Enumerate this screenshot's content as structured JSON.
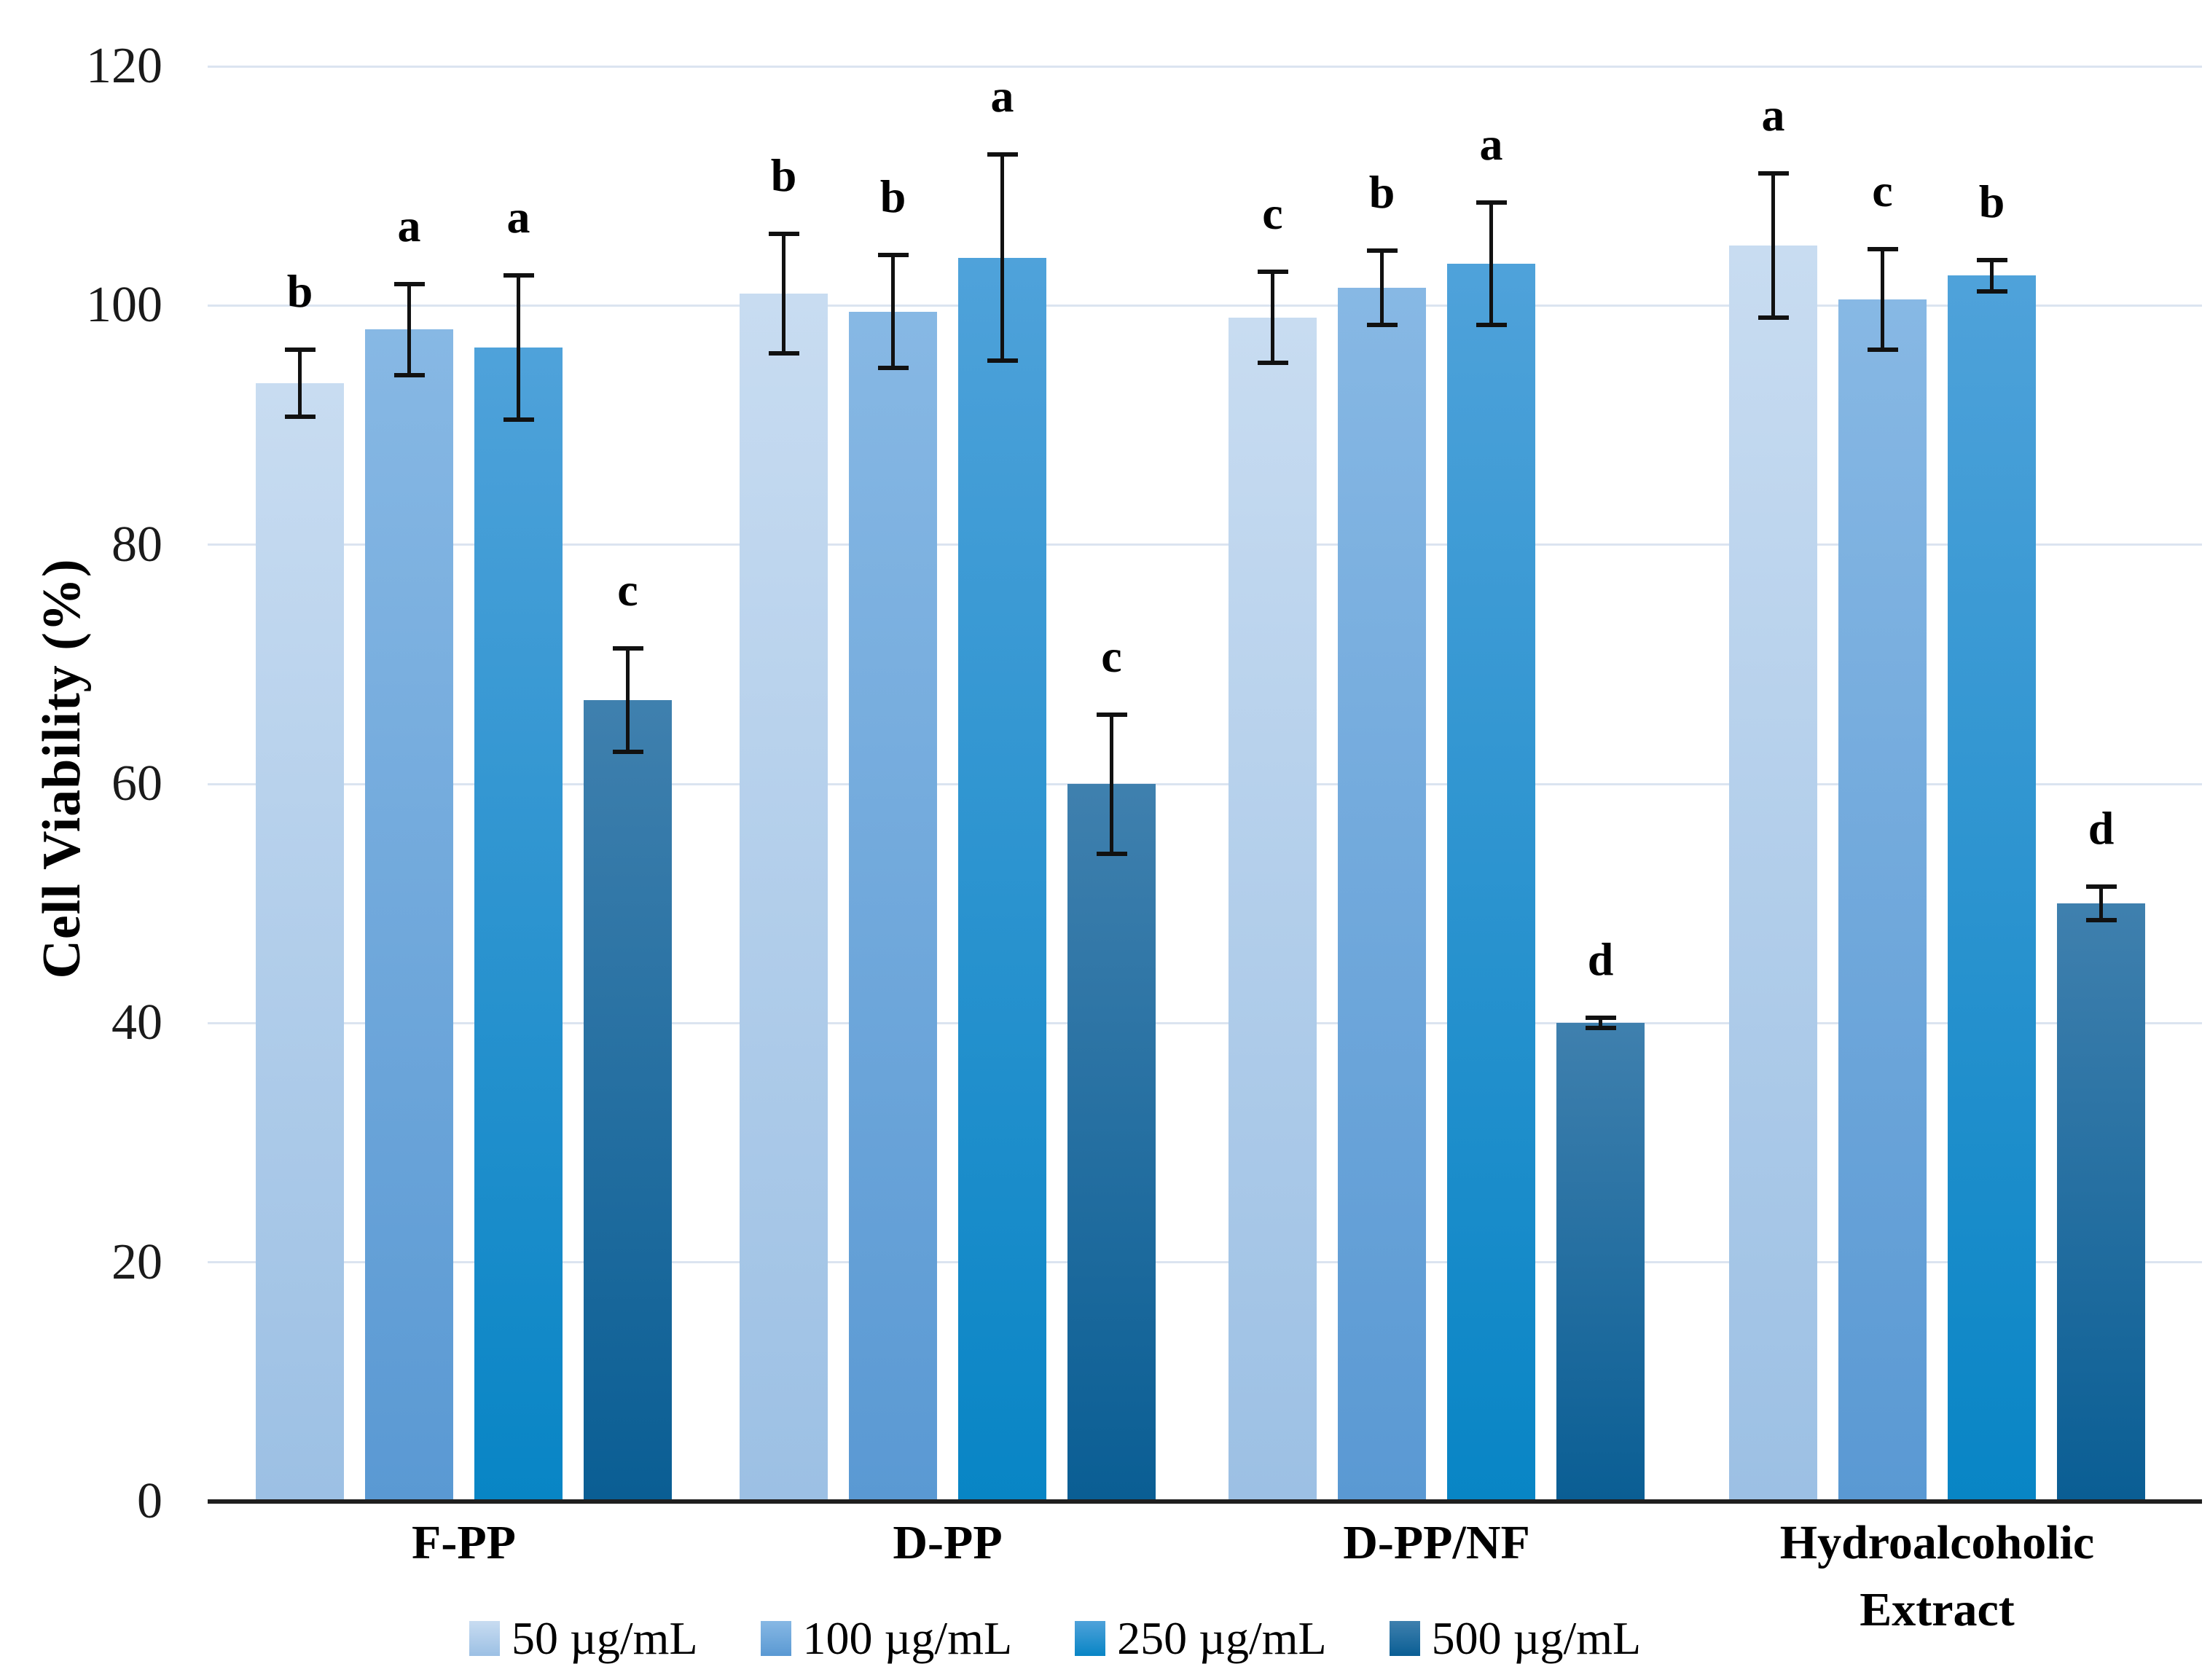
{
  "chart_data": {
    "type": "bar",
    "title": "",
    "ylabel": "Cell Viability (%)",
    "xlabel": "",
    "ylim": [
      0,
      120
    ],
    "yticks": [
      0,
      20,
      40,
      60,
      80,
      100,
      120
    ],
    "grid": true,
    "legend_position": "bottom",
    "categories": [
      "F-PP",
      "D-PP",
      "D-PP/NF",
      "Hydroalcoholic Extract"
    ],
    "series": [
      {
        "name": "50 µg/mL",
        "color_top": "#c8dcf1",
        "color_bottom": "#9cc0e4",
        "values": [
          93.5,
          101,
          99,
          105
        ],
        "errors": [
          3.0,
          5.2,
          4.0,
          6.2
        ],
        "letters": [
          "b",
          "b",
          "c",
          "a"
        ]
      },
      {
        "name": "100 µg/mL",
        "color_top": "#87b8e4",
        "color_bottom": "#5a99d3",
        "values": [
          98,
          99.5,
          101.5,
          100.5
        ],
        "errors": [
          4.0,
          4.9,
          3.3,
          4.4
        ],
        "letters": [
          "a",
          "b",
          "b",
          "c"
        ]
      },
      {
        "name": "250 µg/mL",
        "color_top": "#4fa2da",
        "color_bottom": "#0885c5",
        "values": [
          96.5,
          104,
          103.5,
          102.5
        ],
        "errors": [
          6.2,
          8.8,
          5.3,
          1.5
        ],
        "letters": [
          "a",
          "a",
          "a",
          "b"
        ]
      },
      {
        "name": "500 µg/mL",
        "color_top": "#3f80ae",
        "color_bottom": "#0a5e94",
        "values": [
          67,
          60,
          40,
          50
        ],
        "errors": [
          4.5,
          6.0,
          0.6,
          1.6
        ],
        "letters": [
          "c",
          "c",
          "d",
          "d"
        ]
      }
    ]
  },
  "colors": {
    "gridline": "#dbe4f0",
    "axis": "#1f1f1f",
    "error_bar": "#111111",
    "text": "#000000",
    "background": "#ffffff"
  }
}
